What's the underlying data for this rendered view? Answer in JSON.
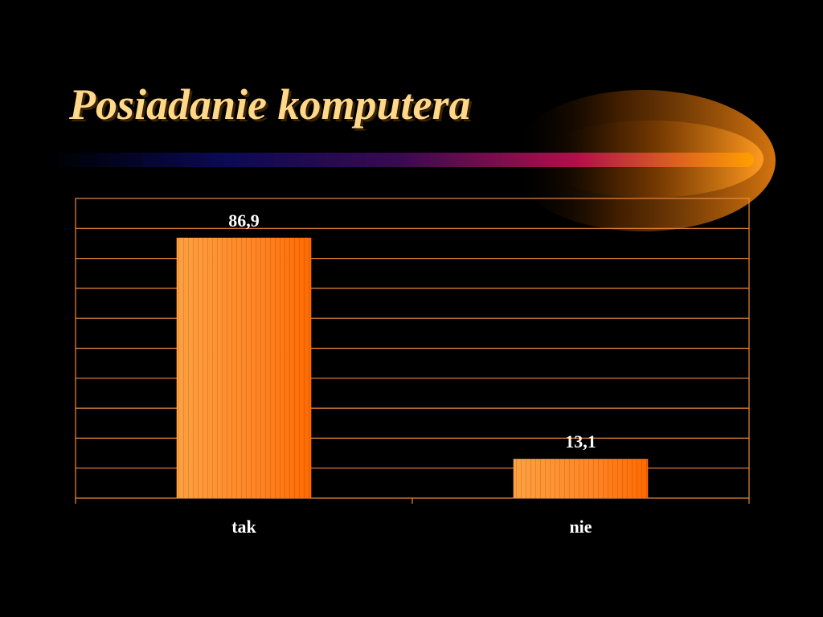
{
  "slide": {
    "title": "Posiadanie komputera"
  },
  "colors": {
    "background": "#000000",
    "title": "#FFD88A",
    "bar_light": "#FFA040",
    "bar_dark": "#FF6A00",
    "grid": "#F08A3A",
    "text": "#FFFFFF"
  },
  "chart_data": {
    "type": "bar",
    "title": "",
    "xlabel": "",
    "ylabel": "",
    "categories": [
      "tak",
      "nie"
    ],
    "values": [
      86.9,
      13.1
    ],
    "value_labels": [
      "86,9",
      "13,1"
    ],
    "ylim": [
      0,
      100
    ],
    "grid": true,
    "legend": "none"
  }
}
